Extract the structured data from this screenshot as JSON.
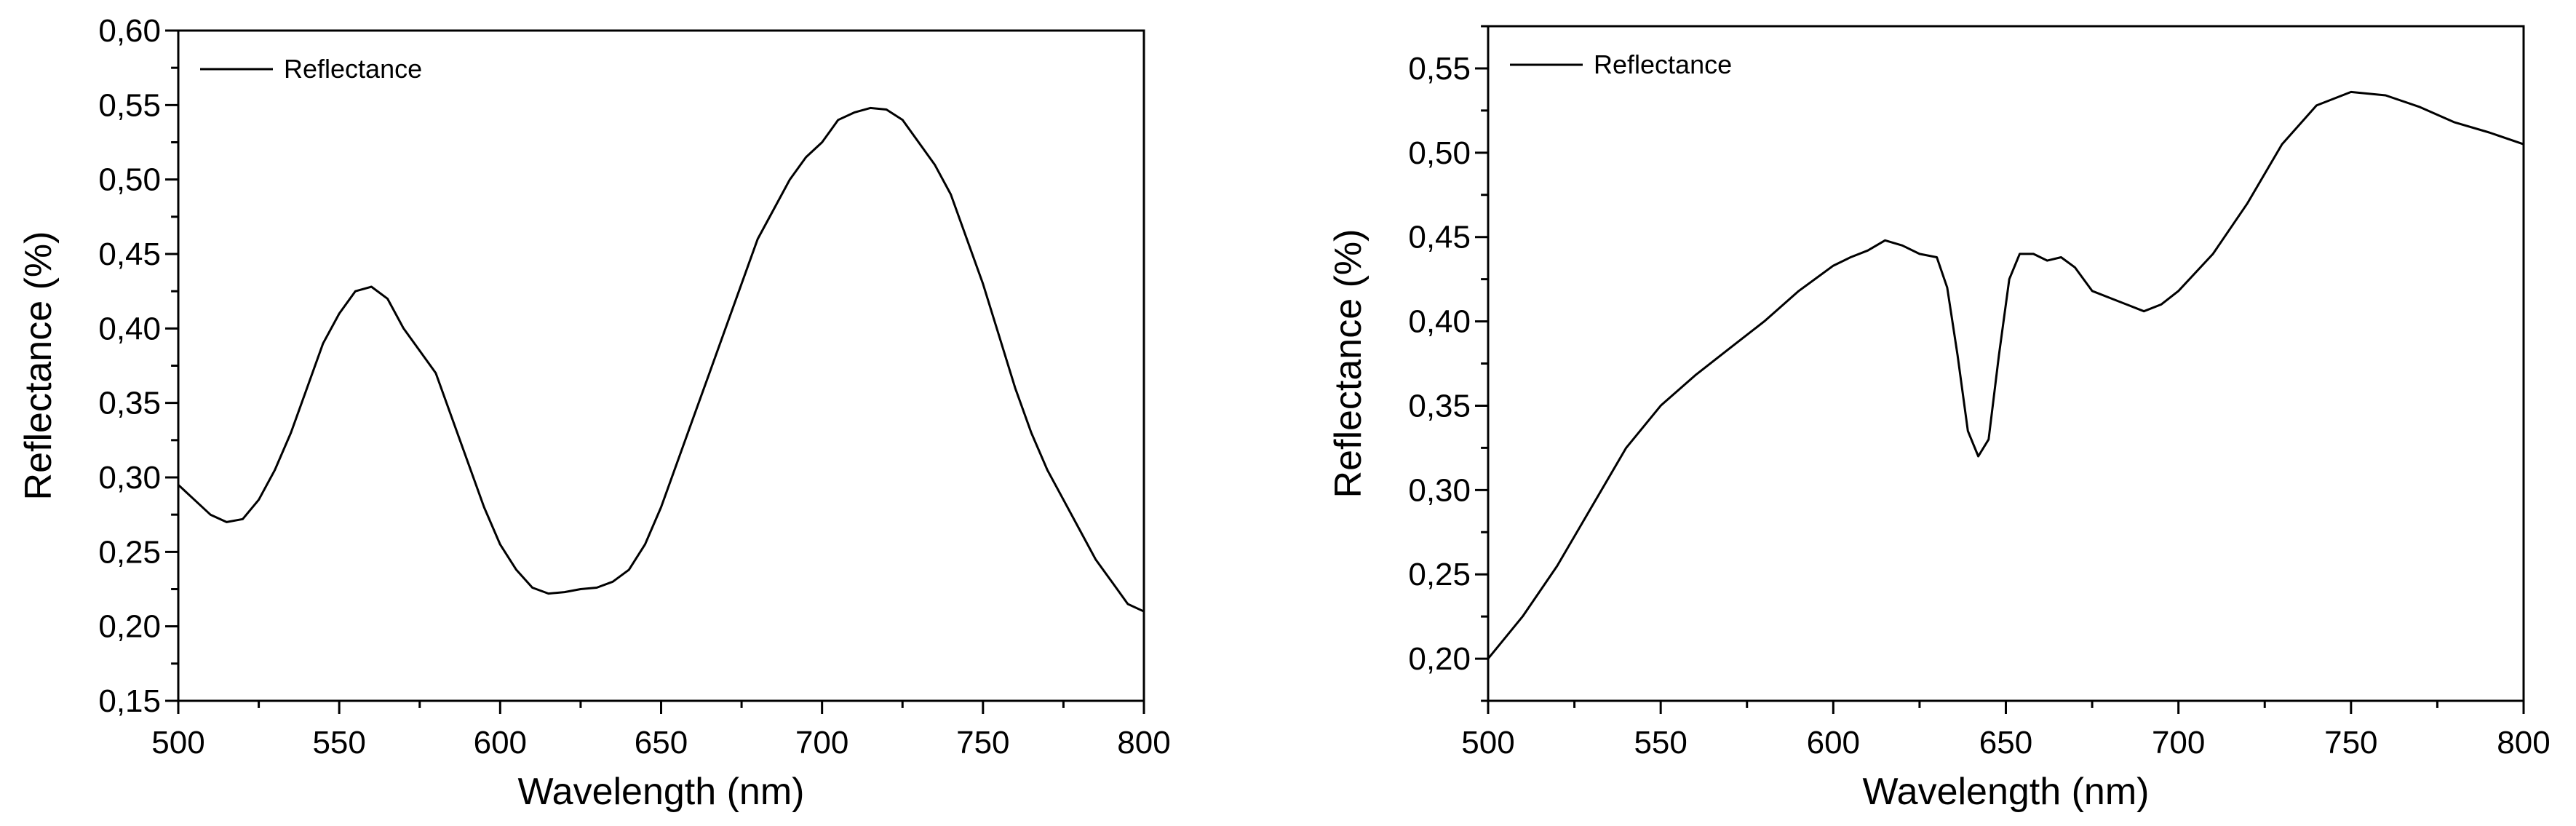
{
  "chart_data": [
    {
      "type": "line",
      "title": "",
      "xlabel": "Wavelength (nm)",
      "ylabel": "Reflectance (%)",
      "xlim": [
        500,
        800
      ],
      "ylim": [
        0.15,
        0.6
      ],
      "xticks": [
        500,
        550,
        600,
        650,
        700,
        750,
        800
      ],
      "yticks": [
        0.15,
        0.2,
        0.25,
        0.3,
        0.35,
        0.4,
        0.45,
        0.5,
        0.55,
        0.6
      ],
      "xtick_labels": [
        "500",
        "550",
        "600",
        "650",
        "700",
        "750",
        "800"
      ],
      "ytick_labels": [
        "0,15",
        "0,20",
        "0,25",
        "0,30",
        "0,35",
        "0,40",
        "0,45",
        "0,50",
        "0,55",
        "0,60"
      ],
      "legend_position": "top-left",
      "grid": false,
      "series": [
        {
          "name": "Reflectance",
          "color": "#000000",
          "x": [
            500,
            505,
            510,
            515,
            520,
            525,
            530,
            535,
            540,
            545,
            550,
            555,
            560,
            565,
            570,
            575,
            580,
            585,
            590,
            595,
            600,
            605,
            610,
            615,
            620,
            625,
            630,
            635,
            640,
            645,
            650,
            655,
            660,
            665,
            670,
            675,
            680,
            685,
            690,
            695,
            700,
            705,
            710,
            715,
            720,
            725,
            730,
            735,
            740,
            745,
            750,
            755,
            760,
            765,
            770,
            775,
            780,
            785,
            790,
            795,
            800
          ],
          "y": [
            0.295,
            0.285,
            0.275,
            0.27,
            0.272,
            0.285,
            0.305,
            0.33,
            0.36,
            0.39,
            0.41,
            0.425,
            0.428,
            0.42,
            0.4,
            0.385,
            0.37,
            0.34,
            0.31,
            0.28,
            0.255,
            0.238,
            0.226,
            0.222,
            0.223,
            0.225,
            0.226,
            0.23,
            0.238,
            0.255,
            0.28,
            0.31,
            0.34,
            0.37,
            0.4,
            0.43,
            0.46,
            0.48,
            0.5,
            0.515,
            0.525,
            0.54,
            0.545,
            0.548,
            0.547,
            0.54,
            0.525,
            0.51,
            0.49,
            0.46,
            0.43,
            0.395,
            0.36,
            0.33,
            0.305,
            0.285,
            0.265,
            0.245,
            0.23,
            0.215,
            0.21
          ]
        }
      ]
    },
    {
      "type": "line",
      "title": "",
      "xlabel": "Wavelength (nm)",
      "ylabel": "Reflectance (%)",
      "xlim": [
        500,
        800
      ],
      "ylim": [
        0.175,
        0.575
      ],
      "xticks": [
        500,
        550,
        600,
        650,
        700,
        750,
        800
      ],
      "yticks": [
        0.2,
        0.25,
        0.3,
        0.35,
        0.4,
        0.45,
        0.5,
        0.55
      ],
      "xtick_labels": [
        "500",
        "550",
        "600",
        "650",
        "700",
        "750",
        "800"
      ],
      "ytick_labels": [
        "0,20",
        "0,25",
        "0,30",
        "0,35",
        "0,40",
        "0,45",
        "0,50",
        "0,55"
      ],
      "legend_position": "top-left",
      "grid": false,
      "series": [
        {
          "name": "Reflectance",
          "color": "#000000",
          "x": [
            500,
            510,
            520,
            530,
            540,
            550,
            560,
            570,
            580,
            590,
            600,
            605,
            610,
            615,
            620,
            625,
            630,
            633,
            636,
            639,
            642,
            645,
            648,
            651,
            654,
            658,
            662,
            666,
            670,
            675,
            680,
            685,
            690,
            695,
            700,
            710,
            720,
            730,
            740,
            750,
            760,
            770,
            780,
            790,
            800
          ],
          "y": [
            0.2,
            0.225,
            0.255,
            0.29,
            0.325,
            0.35,
            0.368,
            0.384,
            0.4,
            0.418,
            0.433,
            0.438,
            0.442,
            0.448,
            0.445,
            0.44,
            0.438,
            0.42,
            0.38,
            0.335,
            0.32,
            0.33,
            0.38,
            0.425,
            0.44,
            0.44,
            0.436,
            0.438,
            0.432,
            0.418,
            0.414,
            0.41,
            0.406,
            0.41,
            0.418,
            0.44,
            0.47,
            0.505,
            0.528,
            0.536,
            0.534,
            0.527,
            0.518,
            0.512,
            0.505
          ]
        }
      ]
    }
  ]
}
